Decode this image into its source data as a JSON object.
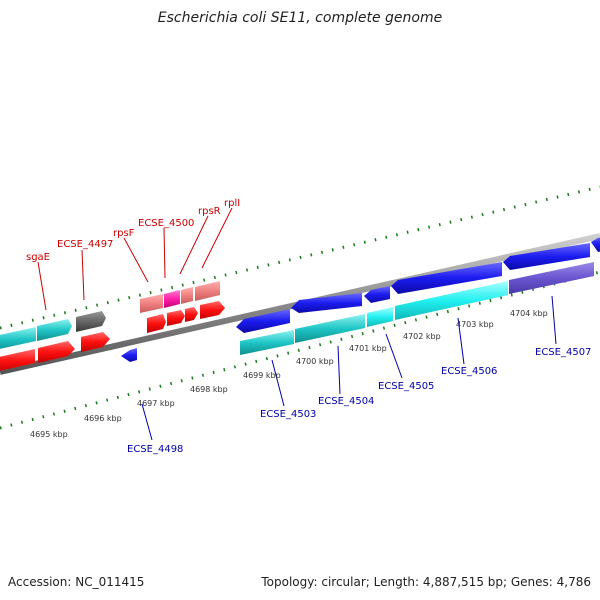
{
  "title": "Escherichia coli SE11, complete genome",
  "footer": {
    "accession": "Accession: NC_011415",
    "summary": "Topology: circular; Length: 4,887,515 bp; Genes: 4,786"
  },
  "kbp_ticks": [
    "4695 kbp",
    "4696 kbp",
    "4697 kbp",
    "4698 kbp",
    "4699 kbp",
    "4700 kbp",
    "4701 kbp",
    "4702 kbp",
    "4703 kbp",
    "4704 kbp"
  ],
  "upper_genes": [
    "sgaE",
    "ECSE_4497",
    "rpsF",
    "ECSE_4500",
    "rpsR",
    "rplI"
  ],
  "lower_genes": [
    "ECSE_4498",
    "ECSE_4503",
    "ECSE_4504",
    "ECSE_4505",
    "ECSE_4506",
    "ECSE_4507"
  ],
  "colors": {
    "forward_strand": "#ff1a1a",
    "reverse_strand": "#1a1aee",
    "cyan_feature": "#22c8c8",
    "pink_feature": "#f08080",
    "gray_feature": "#666666",
    "backbone": "#888888",
    "tick": "#1a7a1a"
  }
}
